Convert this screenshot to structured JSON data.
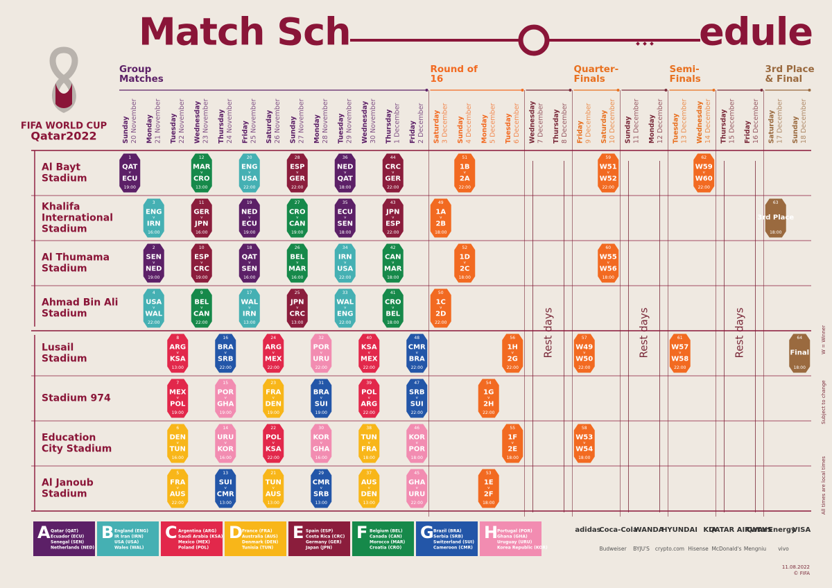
{
  "header": {
    "title_left": "Match Sch",
    "title_right": "edule"
  },
  "logo": {
    "line1": "FIFA WORLD CUP",
    "line2": "Qatar2022"
  },
  "versus": "v",
  "columns": [
    {
      "stage": "Group Matches",
      "color": "#5c2067",
      "days": [
        {
          "weekday": "Sunday",
          "date": "20 November"
        },
        {
          "weekday": "Monday",
          "date": "21 November"
        },
        {
          "weekday": "Tuesday",
          "date": "22 November"
        },
        {
          "weekday": "Wednesday",
          "date": "23 November"
        },
        {
          "weekday": "Thursday",
          "date": "24 November"
        },
        {
          "weekday": "Friday",
          "date": "25 November"
        },
        {
          "weekday": "Saturday",
          "date": "26 November"
        },
        {
          "weekday": "Sunday",
          "date": "27 November"
        },
        {
          "weekday": "Monday",
          "date": "28 November"
        },
        {
          "weekday": "Tuesday",
          "date": "29 November"
        },
        {
          "weekday": "Wednesday",
          "date": "30 November"
        },
        {
          "weekday": "Thursday",
          "date": "1 December"
        },
        {
          "weekday": "Friday",
          "date": "2 December"
        }
      ]
    },
    {
      "stage": "Round of 16",
      "color": "#f26a21",
      "days": [
        {
          "weekday": "Saturday",
          "date": "3 December"
        },
        {
          "weekday": "Sunday",
          "date": "4 December"
        },
        {
          "weekday": "Monday",
          "date": "5 December"
        },
        {
          "weekday": "Tuesday",
          "date": "6 December"
        }
      ]
    },
    {
      "rest": "Rest days",
      "color": "#7a2a3a",
      "days": [
        {
          "weekday": "Wednesday",
          "date": "7 December"
        },
        {
          "weekday": "Thursday",
          "date": "8 December"
        }
      ]
    },
    {
      "stage": "Quarter-Finals",
      "color": "#e8701f",
      "days": [
        {
          "weekday": "Friday",
          "date": "9 December"
        },
        {
          "weekday": "Saturday",
          "date": "10 December"
        }
      ]
    },
    {
      "rest": "Rest days",
      "color": "#7a2a3a",
      "days": [
        {
          "weekday": "Sunday",
          "date": "11 December"
        },
        {
          "weekday": "Monday",
          "date": "12 December"
        }
      ]
    },
    {
      "stage": "Semi-Finals",
      "color": "#e8701f",
      "days": [
        {
          "weekday": "Tuesday",
          "date": "13 December"
        },
        {
          "weekday": "Wednesday",
          "date": "14 December"
        }
      ]
    },
    {
      "rest": "Rest days",
      "color": "#7a2a3a",
      "days": [
        {
          "weekday": "Thursday",
          "date": "15 December"
        },
        {
          "weekday": "Friday",
          "date": "16 December"
        }
      ]
    },
    {
      "stage": "3rd Place & Final",
      "color": "#9a6a3f",
      "days": [
        {
          "weekday": "Saturday",
          "date": "17 December"
        },
        {
          "weekday": "Sunday",
          "date": "18 December"
        }
      ]
    }
  ],
  "stadiums": [
    {
      "name": "Al Bayt Stadium",
      "slots": [
        {
          "no": 1,
          "home": "QAT",
          "away": "ECU",
          "time": "19:00",
          "color": "#5c2067"
        },
        null,
        null,
        {
          "no": 12,
          "home": "MAR",
          "away": "CRO",
          "time": "13:00",
          "color": "#16894a"
        },
        null,
        {
          "no": 20,
          "home": "ENG",
          "away": "USA",
          "time": "22:00",
          "color": "#45b0b3"
        },
        null,
        {
          "no": 28,
          "home": "ESP",
          "away": "GER",
          "time": "22:00",
          "color": "#8b1d3c"
        },
        null,
        {
          "no": 36,
          "home": "NED",
          "away": "QAT",
          "time": "18:00",
          "color": "#5c2067"
        },
        null,
        {
          "no": 44,
          "home": "CRC",
          "away": "GER",
          "time": "22:00",
          "color": "#8b1d3c"
        },
        null,
        null,
        {
          "no": 51,
          "home": "1B",
          "away": "2A",
          "time": "22:00",
          "color": "#f26a21"
        },
        null,
        null,
        null,
        null,
        null,
        {
          "no": 59,
          "home": "W51",
          "away": "W52",
          "time": "22:00",
          "color": "#f26a21"
        },
        null,
        null,
        null,
        {
          "no": 62,
          "home": "W59",
          "away": "W60",
          "time": "22:00",
          "color": "#f26a21"
        },
        null,
        null,
        null,
        null
      ]
    },
    {
      "name": "Khalifa International Stadium",
      "slots": [
        null,
        {
          "no": 3,
          "home": "ENG",
          "away": "IRN",
          "time": "16:00",
          "color": "#45b0b3"
        },
        null,
        {
          "no": 11,
          "home": "GER",
          "away": "JPN",
          "time": "16:00",
          "color": "#8b1d3c"
        },
        null,
        {
          "no": 19,
          "home": "NED",
          "away": "ECU",
          "time": "19:00",
          "color": "#5c2067"
        },
        null,
        {
          "no": 27,
          "home": "CRO",
          "away": "CAN",
          "time": "19:00",
          "color": "#16894a"
        },
        null,
        {
          "no": 35,
          "home": "ECU",
          "away": "SEN",
          "time": "18:00",
          "color": "#5c2067"
        },
        null,
        {
          "no": 43,
          "home": "JPN",
          "away": "ESP",
          "time": "22:00",
          "color": "#8b1d3c"
        },
        null,
        {
          "no": 49,
          "home": "1A",
          "away": "2B",
          "time": "18:00",
          "color": "#f26a21"
        },
        null,
        null,
        null,
        null,
        null,
        null,
        null,
        null,
        null,
        null,
        null,
        null,
        null,
        {
          "no": 63,
          "label": "3rd Place",
          "time": "18:00",
          "color": "#9a6a3f"
        },
        null
      ]
    },
    {
      "name": "Al Thumama Stadium",
      "slots": [
        null,
        {
          "no": 2,
          "home": "SEN",
          "away": "NED",
          "time": "19:00",
          "color": "#5c2067"
        },
        null,
        {
          "no": 10,
          "home": "ESP",
          "away": "CRC",
          "time": "19:00",
          "color": "#8b1d3c"
        },
        null,
        {
          "no": 18,
          "home": "QAT",
          "away": "SEN",
          "time": "16:00",
          "color": "#5c2067"
        },
        null,
        {
          "no": 26,
          "home": "BEL",
          "away": "MAR",
          "time": "16:00",
          "color": "#16894a"
        },
        null,
        {
          "no": 34,
          "home": "IRN",
          "away": "USA",
          "time": "22:00",
          "color": "#45b0b3"
        },
        null,
        {
          "no": 42,
          "home": "CAN",
          "away": "MAR",
          "time": "18:00",
          "color": "#16894a"
        },
        null,
        null,
        {
          "no": 52,
          "home": "1D",
          "away": "2C",
          "time": "18:00",
          "color": "#f26a21"
        },
        null,
        null,
        null,
        null,
        null,
        {
          "no": 60,
          "home": "W55",
          "away": "W56",
          "time": "18:00",
          "color": "#f26a21"
        },
        null,
        null,
        null,
        null,
        null,
        null,
        null,
        null
      ]
    },
    {
      "name": "Ahmad Bin Ali Stadium",
      "slots": [
        null,
        {
          "no": 4,
          "home": "USA",
          "away": "WAL",
          "time": "22:00",
          "color": "#45b0b3"
        },
        null,
        {
          "no": 9,
          "home": "BEL",
          "away": "CAN",
          "time": "22:00",
          "color": "#16894a"
        },
        null,
        {
          "no": 17,
          "home": "WAL",
          "away": "IRN",
          "time": "13:00",
          "color": "#45b0b3"
        },
        null,
        {
          "no": 25,
          "home": "JPN",
          "away": "CRC",
          "time": "13:00",
          "color": "#8b1d3c"
        },
        null,
        {
          "no": 33,
          "home": "WAL",
          "away": "ENG",
          "time": "22:00",
          "color": "#45b0b3"
        },
        null,
        {
          "no": 41,
          "home": "CRO",
          "away": "BEL",
          "time": "18:00",
          "color": "#16894a"
        },
        null,
        {
          "no": 50,
          "home": "1C",
          "away": "2D",
          "time": "22:00",
          "color": "#f26a21"
        },
        null,
        null,
        null,
        null,
        null,
        null,
        null,
        null,
        null,
        null,
        null,
        null,
        null,
        null,
        null
      ]
    },
    {
      "name": "Lusail Stadium",
      "slots": [
        null,
        null,
        {
          "no": 8,
          "home": "ARG",
          "away": "KSA",
          "time": "13:00",
          "color": "#e2284b"
        },
        null,
        {
          "no": 16,
          "home": "BRA",
          "away": "SRB",
          "time": "22:00",
          "color": "#2356a8"
        },
        null,
        {
          "no": 24,
          "home": "ARG",
          "away": "MEX",
          "time": "22:00",
          "color": "#e2284b"
        },
        null,
        {
          "no": 32,
          "home": "POR",
          "away": "URU",
          "time": "22:00",
          "color": "#f28cb1"
        },
        null,
        {
          "no": 40,
          "home": "KSA",
          "away": "MEX",
          "time": "22:00",
          "color": "#e2284b"
        },
        null,
        {
          "no": 48,
          "home": "CMR",
          "away": "BRA",
          "time": "22:00",
          "color": "#2356a8"
        },
        null,
        null,
        null,
        {
          "no": 56,
          "home": "1H",
          "away": "2G",
          "time": "22:00",
          "color": "#f26a21"
        },
        null,
        null,
        {
          "no": 57,
          "home": "W49",
          "away": "W50",
          "time": "22:00",
          "color": "#f26a21"
        },
        null,
        null,
        null,
        {
          "no": 61,
          "home": "W57",
          "away": "W58",
          "time": "22:00",
          "color": "#f26a21"
        },
        null,
        null,
        null,
        null,
        {
          "no": 64,
          "label": "Final",
          "time": "18:00",
          "color": "#9a6a3f"
        }
      ]
    },
    {
      "name": "Stadium 974",
      "slots": [
        null,
        null,
        {
          "no": 7,
          "home": "MEX",
          "away": "POL",
          "time": "19:00",
          "color": "#e2284b"
        },
        null,
        {
          "no": 15,
          "home": "POR",
          "away": "GHA",
          "time": "19:00",
          "color": "#f28cb1"
        },
        null,
        {
          "no": 23,
          "home": "FRA",
          "away": "DEN",
          "time": "19:00",
          "color": "#f8b619"
        },
        null,
        {
          "no": 31,
          "home": "BRA",
          "away": "SUI",
          "time": "19:00",
          "color": "#2356a8"
        },
        null,
        {
          "no": 39,
          "home": "POL",
          "away": "ARG",
          "time": "22:00",
          "color": "#e2284b"
        },
        null,
        {
          "no": 47,
          "home": "SRB",
          "away": "SUI",
          "time": "22:00",
          "color": "#2356a8"
        },
        null,
        null,
        {
          "no": 54,
          "home": "1G",
          "away": "2H",
          "time": "22:00",
          "color": "#f26a21"
        },
        null,
        null,
        null,
        null,
        null,
        null,
        null,
        null,
        null,
        null,
        null,
        null,
        null
      ]
    },
    {
      "name": "Education City Stadium",
      "slots": [
        null,
        null,
        {
          "no": 6,
          "home": "DEN",
          "away": "TUN",
          "time": "16:00",
          "color": "#f8b619"
        },
        null,
        {
          "no": 14,
          "home": "URU",
          "away": "KOR",
          "time": "16:00",
          "color": "#f28cb1"
        },
        null,
        {
          "no": 22,
          "home": "POL",
          "away": "KSA",
          "time": "22:00",
          "color": "#e2284b"
        },
        null,
        {
          "no": 30,
          "home": "KOR",
          "away": "GHA",
          "time": "16:00",
          "color": "#f28cb1"
        },
        null,
        {
          "no": 38,
          "home": "TUN",
          "away": "FRA",
          "time": "18:00",
          "color": "#f8b619"
        },
        null,
        {
          "no": 46,
          "home": "KOR",
          "away": "POR",
          "time": "18:00",
          "color": "#f28cb1"
        },
        null,
        null,
        null,
        {
          "no": 55,
          "home": "1F",
          "away": "2E",
          "time": "18:00",
          "color": "#f26a21"
        },
        null,
        null,
        {
          "no": 58,
          "home": "W53",
          "away": "W54",
          "time": "18:00",
          "color": "#f26a21"
        },
        null,
        null,
        null,
        null,
        null,
        null,
        null,
        null,
        null
      ]
    },
    {
      "name": "Al Janoub Stadium",
      "slots": [
        null,
        null,
        {
          "no": 5,
          "home": "FRA",
          "away": "AUS",
          "time": "22:00",
          "color": "#f8b619"
        },
        null,
        {
          "no": 13,
          "home": "SUI",
          "away": "CMR",
          "time": "13:00",
          "color": "#2356a8"
        },
        null,
        {
          "no": 21,
          "home": "TUN",
          "away": "AUS",
          "time": "13:00",
          "color": "#f8b619"
        },
        null,
        {
          "no": 29,
          "home": "CMR",
          "away": "SRB",
          "time": "13:00",
          "color": "#2356a8"
        },
        null,
        {
          "no": 37,
          "home": "AUS",
          "away": "DEN",
          "time": "13:00",
          "color": "#f8b619"
        },
        null,
        {
          "no": 45,
          "home": "GHA",
          "away": "URU",
          "time": "22:00",
          "color": "#f28cb1"
        },
        null,
        null,
        {
          "no": 53,
          "home": "1E",
          "away": "2F",
          "time": "18:00",
          "color": "#f26a21"
        },
        null,
        null,
        null,
        null,
        null,
        null,
        null,
        null,
        null,
        null,
        null,
        null,
        null
      ]
    }
  ],
  "groups": [
    {
      "letter": "A",
      "color": "#5c2067",
      "teams": [
        "Qatar (QAT)",
        "Ecuador (ECU)",
        "Senegal (SEN)",
        "Netherlands (NED)"
      ]
    },
    {
      "letter": "B",
      "color": "#45b0b3",
      "teams": [
        "England (ENG)",
        "IR Iran (IRN)",
        "USA (USA)",
        "Wales (WAL)"
      ]
    },
    {
      "letter": "C",
      "color": "#e2284b",
      "teams": [
        "Argentina (ARG)",
        "Saudi Arabia (KSA)",
        "Mexico (MEX)",
        "Poland (POL)"
      ]
    },
    {
      "letter": "D",
      "color": "#f8b619",
      "teams": [
        "France (FRA)",
        "Australia (AUS)",
        "Denmark (DEN)",
        "Tunisia (TUN)"
      ]
    },
    {
      "letter": "E",
      "color": "#8b1d3c",
      "teams": [
        "Spain (ESP)",
        "Costa Rica (CRC)",
        "Germany (GER)",
        "Japan (JPN)"
      ]
    },
    {
      "letter": "F",
      "color": "#16894a",
      "teams": [
        "Belgium (BEL)",
        "Canada (CAN)",
        "Morocco (MAR)",
        "Croatia (CRO)"
      ]
    },
    {
      "letter": "G",
      "color": "#2356a8",
      "teams": [
        "Brazil (BRA)",
        "Serbia (SRB)",
        "Switzerland (SUI)",
        "Cameroon (CMR)"
      ]
    },
    {
      "letter": "H",
      "color": "#f28cb1",
      "teams": [
        "Portugal (POR)",
        "Ghana (GHA)",
        "Uruguay (URU)",
        "Korea Republic (KOR)"
      ]
    }
  ],
  "side_notes": [
    "W = Winner",
    "Subject to change",
    "All times are local times"
  ],
  "sponsors": {
    "row1": [
      "adidas",
      "Coca-Cola",
      "WANDA",
      "HYUNDAI",
      "KIA",
      "QATAR AIRWAYS",
      "QatarEnergy",
      "VISA"
    ],
    "row2": [
      "Budweiser",
      "BYJU'S",
      "crypto.com",
      "Hisense",
      "McDonald's",
      "Mengniu",
      "vivo"
    ]
  },
  "footer": {
    "date": "11.08.2022",
    "copyright": "© FIFA"
  }
}
